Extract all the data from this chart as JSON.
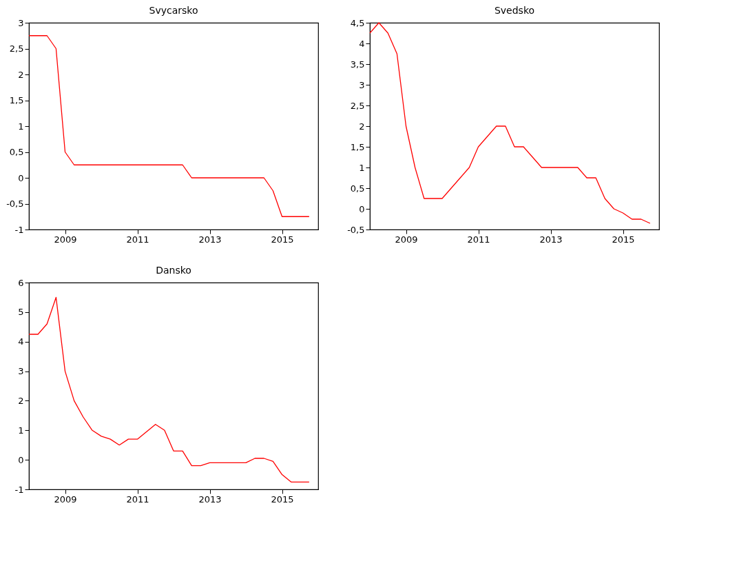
{
  "chart_data": [
    {
      "type": "line",
      "title": "Svycarsko",
      "x": [
        2008,
        2008.25,
        2008.5,
        2008.75,
        2009,
        2009.25,
        2009.5,
        2009.75,
        2010,
        2010.25,
        2010.5,
        2010.75,
        2011,
        2011.25,
        2011.5,
        2011.75,
        2012,
        2012.25,
        2012.5,
        2012.75,
        2013,
        2013.25,
        2013.5,
        2013.75,
        2014,
        2014.25,
        2014.5,
        2014.75,
        2015,
        2015.25,
        2015.5,
        2015.75
      ],
      "series": [
        {
          "color": "#ff0000",
          "values": [
            2.75,
            2.75,
            2.75,
            2.5,
            0.5,
            0.25,
            0.25,
            0.25,
            0.25,
            0.25,
            0.25,
            0.25,
            0.25,
            0.25,
            0.25,
            0.25,
            0.25,
            0.25,
            0,
            0,
            0,
            0,
            0,
            0,
            0,
            0,
            0,
            -0.25,
            -0.75,
            -0.75,
            -0.75,
            -0.75
          ]
        }
      ],
      "xlim": [
        2008,
        2016
      ],
      "xticks": [
        2009,
        2011,
        2013,
        2015
      ],
      "ylim": [
        -1,
        3
      ],
      "yticks": [
        -1,
        {
          "value": -0.5,
          "label": "-0,5"
        },
        0,
        {
          "value": 0.5,
          "label": "0,5"
        },
        1,
        {
          "value": 1.5,
          "label": "1,5"
        },
        2,
        {
          "value": 2.5,
          "label": "2,5"
        },
        3
      ],
      "grid": false,
      "marker": "none",
      "line_style": "solid"
    },
    {
      "type": "line",
      "title": "Svedsko",
      "x": [
        2008,
        2008.25,
        2008.5,
        2008.75,
        2009,
        2009.25,
        2009.5,
        2009.75,
        2010,
        2010.25,
        2010.5,
        2010.75,
        2011,
        2011.25,
        2011.5,
        2011.75,
        2012,
        2012.25,
        2012.5,
        2012.75,
        2013,
        2013.25,
        2013.5,
        2013.75,
        2014,
        2014.25,
        2014.5,
        2014.75,
        2015,
        2015.25,
        2015.5,
        2015.75
      ],
      "series": [
        {
          "color": "#ff0000",
          "values": [
            4.25,
            4.5,
            4.25,
            3.75,
            2.0,
            1.0,
            0.25,
            0.25,
            0.25,
            0.5,
            0.75,
            1.0,
            1.5,
            1.75,
            2.0,
            2.0,
            1.5,
            1.5,
            1.25,
            1.0,
            1.0,
            1.0,
            1.0,
            1.0,
            0.75,
            0.75,
            0.25,
            0,
            -0.1,
            -0.25,
            -0.25,
            -0.35
          ]
        }
      ],
      "xlim": [
        2008,
        2016
      ],
      "xticks": [
        2009,
        2011,
        2013,
        2015
      ],
      "ylim": [
        -0.5,
        4.5
      ],
      "yticks": [
        {
          "value": -0.5,
          "label": "-0,5"
        },
        0,
        {
          "value": 0.5,
          "label": "0,5"
        },
        1,
        {
          "value": 1.5,
          "label": "1,5"
        },
        2,
        {
          "value": 2.5,
          "label": "2,5"
        },
        3,
        {
          "value": 3.5,
          "label": "3,5"
        },
        4,
        {
          "value": 4.5,
          "label": "4,5"
        }
      ],
      "grid": false,
      "marker": "none",
      "line_style": "solid"
    },
    {
      "type": "line",
      "title": "Dansko",
      "x": [
        2008,
        2008.25,
        2008.5,
        2008.75,
        2009,
        2009.25,
        2009.5,
        2009.75,
        2010,
        2010.25,
        2010.5,
        2010.75,
        2011,
        2011.25,
        2011.5,
        2011.75,
        2012,
        2012.25,
        2012.5,
        2012.75,
        2013,
        2013.25,
        2013.5,
        2013.75,
        2014,
        2014.25,
        2014.5,
        2014.75,
        2015,
        2015.25,
        2015.5,
        2015.75
      ],
      "series": [
        {
          "color": "#ff0000",
          "values": [
            4.25,
            4.25,
            4.6,
            5.5,
            3.0,
            2.0,
            1.45,
            1.0,
            0.8,
            0.7,
            0.5,
            0.7,
            0.7,
            0.95,
            1.2,
            1.0,
            0.3,
            0.3,
            -0.2,
            -0.2,
            -0.1,
            -0.1,
            -0.1,
            -0.1,
            -0.1,
            0.05,
            0.05,
            -0.05,
            -0.5,
            -0.75,
            -0.75,
            -0.75
          ]
        }
      ],
      "xlim": [
        2008,
        2016
      ],
      "xticks": [
        2009,
        2011,
        2013,
        2015
      ],
      "ylim": [
        -1,
        6
      ],
      "yticks": [
        -1,
        0,
        1,
        2,
        3,
        4,
        5,
        6
      ],
      "grid": false,
      "marker": "none",
      "line_style": "solid"
    }
  ]
}
